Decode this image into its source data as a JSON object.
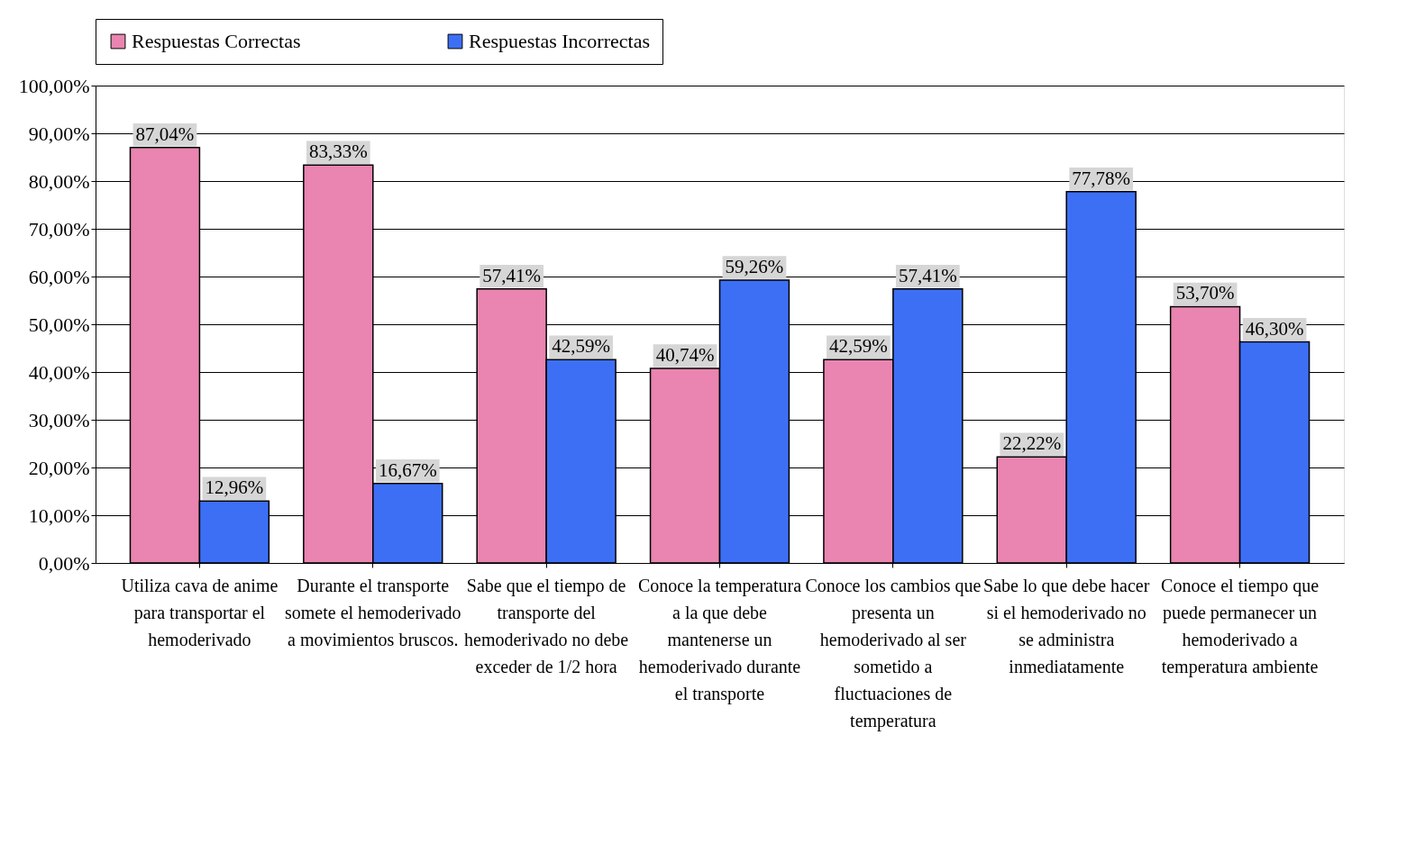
{
  "chart_data": {
    "type": "bar",
    "categories": [
      "Utiliza cava de anime para transportar el hemoderivado",
      "Durante el transporte somete el hemoderivado a movimientos bruscos.",
      "Sabe que el tiempo de transporte del hemoderivado no debe exceder de 1/2 hora",
      "Conoce la temperatura a la que debe mantenerse un hemoderivado durante el transporte",
      "Conoce los cambios que presenta un hemoderivado al ser sometido a fluctuaciones de temperatura",
      "Sabe lo que debe hacer si el hemoderivado no se administra inmediatamente",
      "Conoce el tiempo que puede permanecer un hemoderivado a temperatura ambiente"
    ],
    "series": [
      {
        "name": "Respuestas Correctas",
        "color": "#e985b0",
        "values": [
          87.04,
          83.33,
          57.41,
          40.74,
          42.59,
          22.22,
          53.7
        ],
        "value_labels": [
          "87,04%",
          "83,33%",
          "57,41%",
          "40,74%",
          "42,59%",
          "22,22%",
          "53,70%"
        ]
      },
      {
        "name": "Respuestas Incorrectas",
        "color": "#3d6ff5",
        "values": [
          12.96,
          16.67,
          42.59,
          59.26,
          57.41,
          77.78,
          46.3
        ],
        "value_labels": [
          "12,96%",
          "16,67%",
          "42,59%",
          "59,26%",
          "57,41%",
          "77,78%",
          "46,30%"
        ]
      }
    ],
    "ylim": [
      0,
      100
    ],
    "yticks": [
      {
        "value": 0,
        "label": "0,00%"
      },
      {
        "value": 10,
        "label": "10,00%"
      },
      {
        "value": 20,
        "label": "20,00%"
      },
      {
        "value": 30,
        "label": "30,00%"
      },
      {
        "value": 40,
        "label": "40,00%"
      },
      {
        "value": 50,
        "label": "50,00%"
      },
      {
        "value": 60,
        "label": "60,00%"
      },
      {
        "value": 70,
        "label": "70,00%"
      },
      {
        "value": 80,
        "label": "80,00%"
      },
      {
        "value": 90,
        "label": "90,00%"
      },
      {
        "value": 100,
        "label": "100,00%"
      }
    ],
    "grid": "y",
    "legend": "top"
  }
}
